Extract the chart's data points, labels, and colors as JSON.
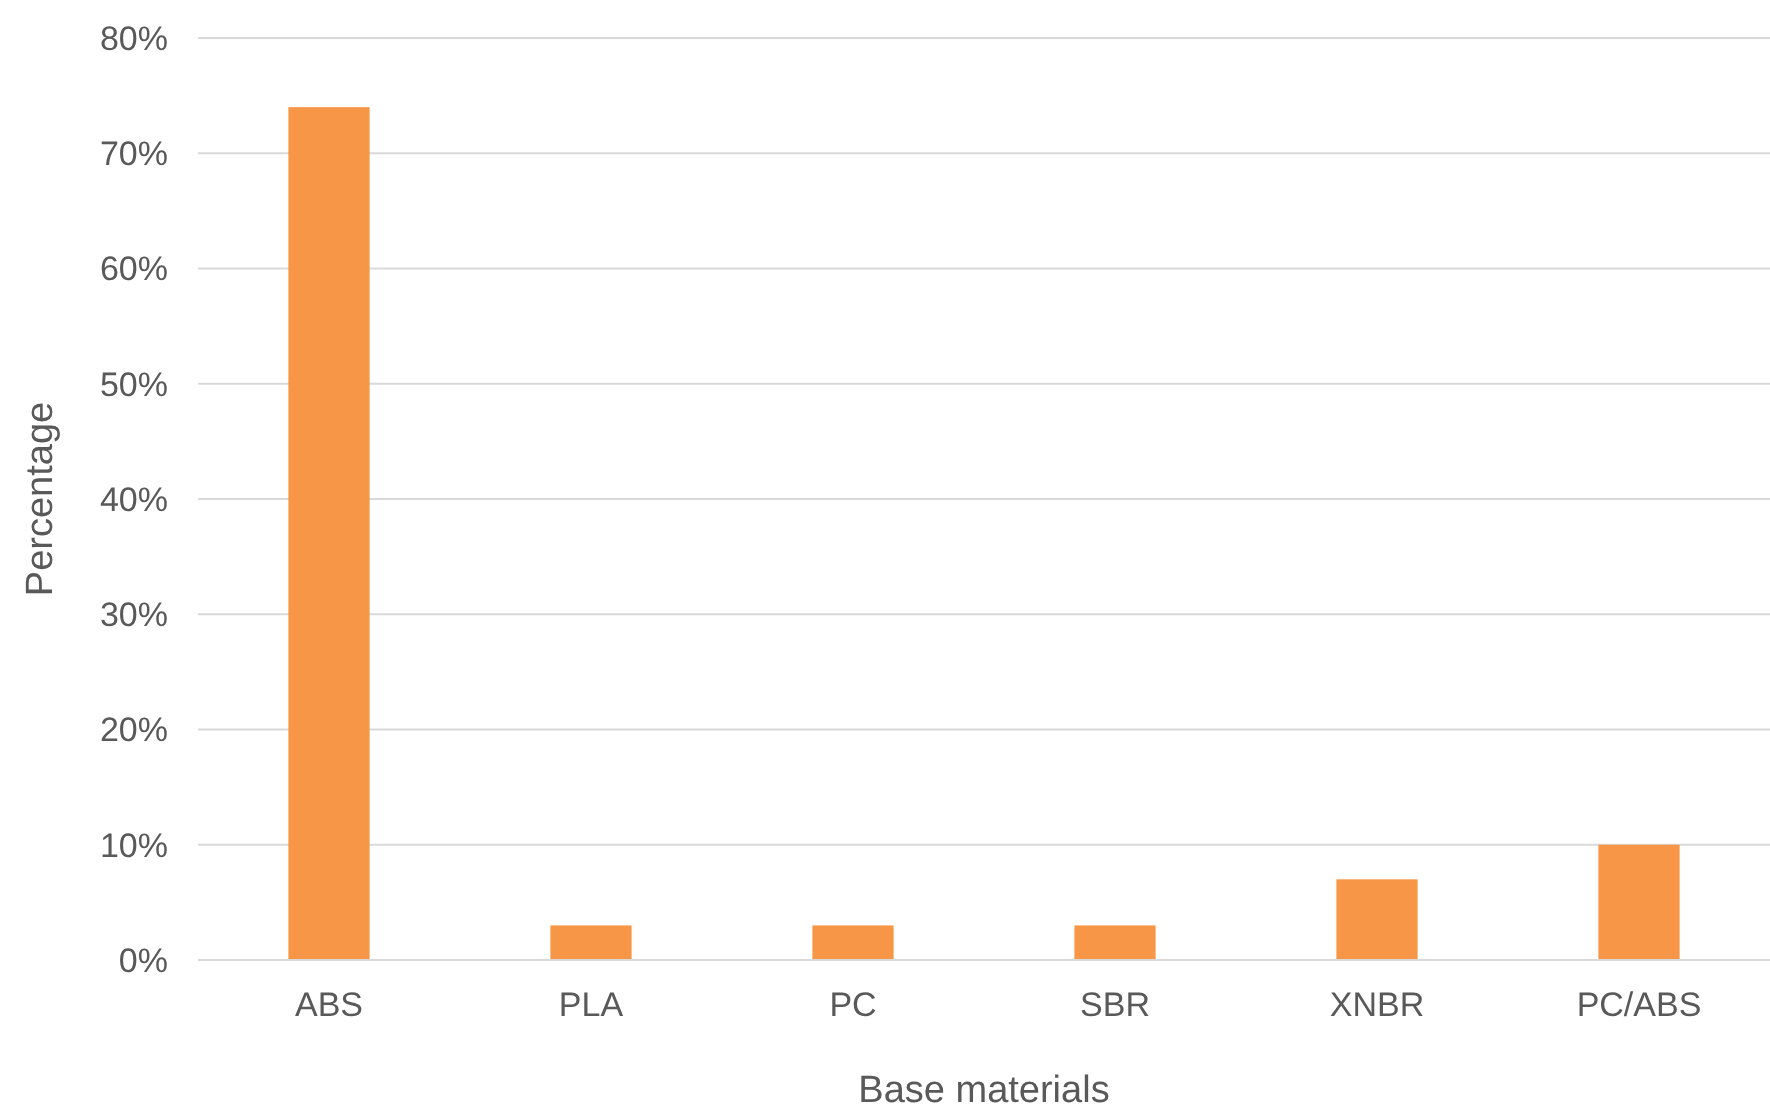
{
  "chart_data": {
    "type": "bar",
    "xlabel": "Base materials",
    "ylabel": "Percentage",
    "categories": [
      "ABS",
      "PLA",
      "PC",
      "SBR",
      "XNBR",
      "PC/ABS"
    ],
    "values": [
      74,
      3,
      3,
      3,
      7,
      10
    ],
    "color": "#f79646",
    "ylim": [
      0,
      80
    ],
    "yticks": [
      {
        "value": 0,
        "label": "0%"
      },
      {
        "value": 10,
        "label": "10%"
      },
      {
        "value": 20,
        "label": "20%"
      },
      {
        "value": 30,
        "label": "30%"
      },
      {
        "value": 40,
        "label": "40%"
      },
      {
        "value": 50,
        "label": "50%"
      },
      {
        "value": 60,
        "label": "60%"
      },
      {
        "value": 70,
        "label": "70%"
      },
      {
        "value": 80,
        "label": "80%"
      }
    ],
    "grid": "y"
  }
}
